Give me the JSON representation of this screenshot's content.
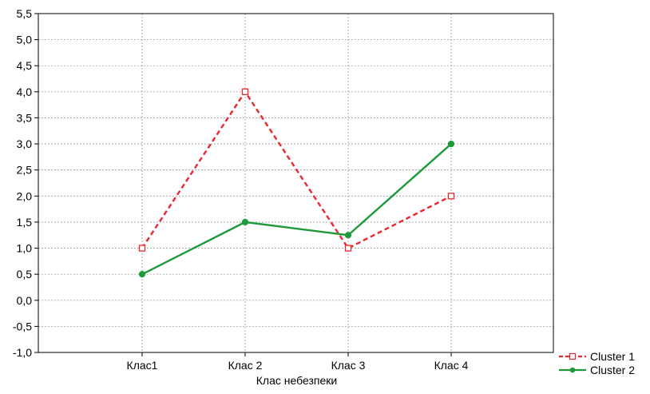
{
  "chart_data": {
    "type": "line",
    "title": "",
    "xlabel": "Клас небезпеки",
    "ylabel": "",
    "categories": [
      "Клас1",
      "Клас 2",
      "Клас 3",
      "Клас 4"
    ],
    "ylim": [
      -1.0,
      5.5
    ],
    "yticks": [
      "-1,0",
      "-0,5",
      "0,0",
      "0,5",
      "1,0",
      "1,5",
      "2,0",
      "2,5",
      "3,0",
      "3,5",
      "4,0",
      "4,5",
      "5,0",
      "5,5"
    ],
    "grid": true,
    "legend_position": "bottom-right",
    "series": [
      {
        "name": "Cluster 1",
        "values": [
          1.0,
          4.0,
          1.0,
          2.0
        ],
        "color": "#e8282c",
        "line_style": "dashed",
        "marker": "open-square"
      },
      {
        "name": "Cluster 2",
        "values": [
          0.5,
          1.5,
          1.25,
          3.0
        ],
        "color": "#1f9a3a",
        "line_style": "solid",
        "marker": "filled-circle"
      }
    ]
  }
}
